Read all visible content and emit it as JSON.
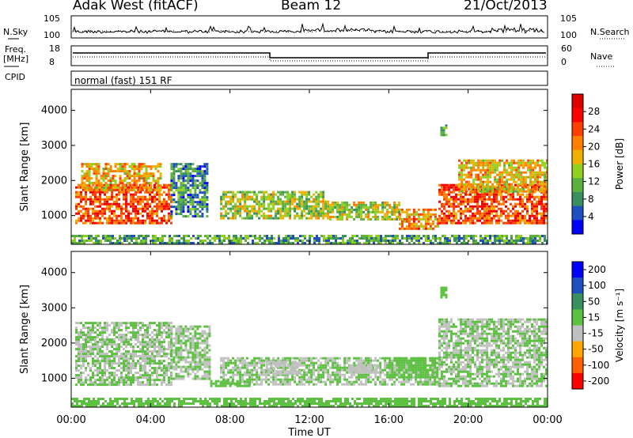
{
  "header": {
    "station": "Adak West (fitACF)",
    "beam": "Beam 12",
    "date": "21/Oct/2013"
  },
  "top_panels": {
    "noise_left_label": "N.Sky",
    "noise_right_label": "N.Search",
    "noise_left_ticks": [
      "10^5",
      "10^0"
    ],
    "noise_right_ticks": [
      "10^5",
      "10^0"
    ],
    "freq_label_top": "Freq.",
    "freq_label_unit": "[MHz]",
    "freq_ticks": [
      "18",
      "8"
    ],
    "nave_label": "Nave",
    "nave_ticks": [
      "60",
      "0"
    ],
    "cpid_label": "CPID",
    "cpid_text": "normal (fast) 151 RF"
  },
  "chart_data": [
    {
      "type": "heatmap",
      "title": "",
      "xlabel": "",
      "ylabel": "Slant Range [km]",
      "colorbar_label": "Power [dB]",
      "x_ticks": [
        "00:00",
        "04:00",
        "08:00",
        "12:00",
        "16:00",
        "20:00",
        "00:00"
      ],
      "y_ticks": [
        "1000",
        "2000",
        "3000",
        "4000"
      ],
      "ylim": [
        180,
        4600
      ],
      "colorbar_ticks": [
        "4",
        "8",
        "12",
        "16",
        "20",
        "24",
        "28"
      ],
      "colorbar_range": [
        0,
        32
      ],
      "colors": [
        "#0000ff",
        "#2050c0",
        "#3a8f5f",
        "#5cb040",
        "#90d020",
        "#f0b000",
        "#ff8000",
        "#ff4000",
        "#ff0000",
        "#e00000"
      ],
      "regions": [
        {
          "t_start": 0.2,
          "t_end": 5.0,
          "r_low": 800,
          "r_high": 1900,
          "value": 24
        },
        {
          "t_start": 0.5,
          "t_end": 4.5,
          "r_low": 1700,
          "r_high": 2500,
          "value": 18
        },
        {
          "t_start": 5.0,
          "t_end": 6.8,
          "r_low": 1000,
          "r_high": 2500,
          "value": 8
        },
        {
          "t_start": 7.5,
          "t_end": 13.0,
          "r_low": 900,
          "r_high": 1700,
          "value": 14
        },
        {
          "t_start": 13.0,
          "t_end": 16.5,
          "r_low": 900,
          "r_high": 1400,
          "value": 15
        },
        {
          "t_start": 16.5,
          "t_end": 18.5,
          "r_low": 650,
          "r_high": 1200,
          "value": 20
        },
        {
          "t_start": 18.5,
          "t_end": 24.0,
          "r_low": 800,
          "r_high": 1900,
          "value": 24
        },
        {
          "t_start": 19.5,
          "t_end": 24.0,
          "r_low": 1700,
          "r_high": 2600,
          "value": 18
        },
        {
          "t_start": 18.6,
          "t_end": 18.9,
          "r_low": 3300,
          "r_high": 3600,
          "value": 12
        },
        {
          "t_start": 0.0,
          "t_end": 24.0,
          "r_low": 200,
          "r_high": 450,
          "value": 10
        }
      ]
    },
    {
      "type": "heatmap",
      "title": "",
      "xlabel": "Time UT",
      "ylabel": "Slant Range [km]",
      "colorbar_label": "Velocity [m s^-1]",
      "x_ticks": [
        "00:00",
        "04:00",
        "08:00",
        "12:00",
        "16:00",
        "20:00",
        "00:00"
      ],
      "y_ticks": [
        "1000",
        "2000",
        "3000",
        "4000"
      ],
      "ylim": [
        180,
        4600
      ],
      "colorbar_ticks": [
        "200",
        "100",
        "50",
        "15",
        "-15",
        "-50",
        "-100",
        "-200"
      ],
      "colorbar_range": [
        -250,
        250
      ],
      "colors": [
        "#0000ff",
        "#2050c0",
        "#3a8f5f",
        "#5cc040",
        "#c0c0c0",
        "#ffa500",
        "#ff6000",
        "#ff0000"
      ],
      "regions": [
        {
          "t_start": 0.2,
          "t_end": 5.0,
          "r_low": 800,
          "r_high": 2600,
          "value": 0
        },
        {
          "t_start": 5.0,
          "t_end": 7.0,
          "r_low": 1000,
          "r_high": 2500,
          "value": 0
        },
        {
          "t_start": 7.5,
          "t_end": 18.5,
          "r_low": 800,
          "r_high": 1600,
          "value": 0
        },
        {
          "t_start": 9.8,
          "t_end": 11.5,
          "r_low": 1100,
          "r_high": 1500,
          "value": -40
        },
        {
          "t_start": 14.0,
          "t_end": 15.5,
          "r_low": 1150,
          "r_high": 1400,
          "value": -40
        },
        {
          "t_start": 16.0,
          "t_end": 18.5,
          "r_low": 1000,
          "r_high": 1600,
          "value": 40
        },
        {
          "t_start": 18.5,
          "t_end": 24.0,
          "r_low": 800,
          "r_high": 2700,
          "value": 0
        },
        {
          "t_start": 18.6,
          "t_end": 18.9,
          "r_low": 3300,
          "r_high": 3600,
          "value": 40
        },
        {
          "t_start": 7.0,
          "t_end": 9.0,
          "r_low": 750,
          "r_high": 950,
          "value": 40
        },
        {
          "t_start": 0.0,
          "t_end": 24.0,
          "r_low": 200,
          "r_high": 450,
          "value": 40
        }
      ]
    }
  ]
}
